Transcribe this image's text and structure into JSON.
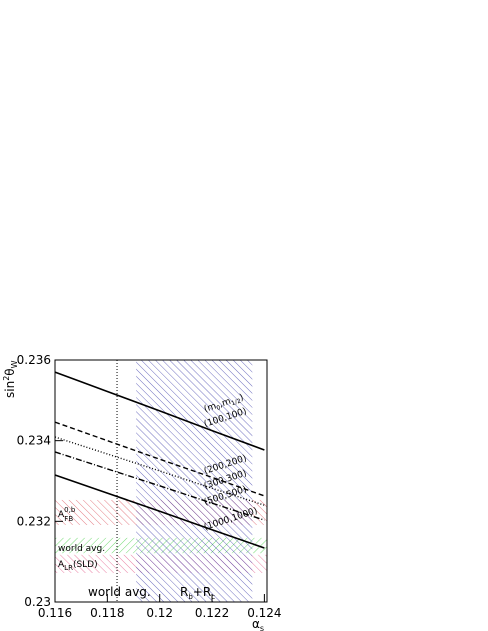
{
  "chart_data": {
    "type": "line",
    "x_label": {
      "base": "α",
      "sub": "s"
    },
    "y_label": {
      "base": "sin",
      "sup": "2",
      "mid": "θ",
      "sub": "W"
    },
    "xlim": [
      0.116,
      0.1241
    ],
    "ylim": [
      0.23,
      0.236
    ],
    "xticks": [
      0.116,
      0.118,
      0.12,
      0.122,
      0.124
    ],
    "yticks": [
      0.23,
      0.232,
      0.234,
      0.236
    ],
    "x": [
      0.116,
      0.118,
      0.12,
      0.122,
      0.124
    ],
    "series_header": {
      "a": "(m",
      "b": "0",
      "c": ",m",
      "d": "1/2",
      "e": ")"
    },
    "series": [
      {
        "name": "(100,100)",
        "color": "#000000",
        "style": "solid",
        "values": [
          0.2357,
          0.23522,
          0.23474,
          0.23425,
          0.23377
        ]
      },
      {
        "name": "(200,200)",
        "color": "#000000",
        "style": "dashed",
        "values": [
          0.23446,
          0.234,
          0.23354,
          0.23309,
          0.23263
        ]
      },
      {
        "name": "(300,300)",
        "color": "#000000",
        "style": "dotted",
        "values": [
          0.23409,
          0.23367,
          0.23325,
          0.23282,
          0.2324
        ]
      },
      {
        "name": "(500,500)",
        "color": "#000000",
        "style": "dashdot",
        "values": [
          0.23372,
          0.2333,
          0.23288,
          0.23245,
          0.23203
        ]
      },
      {
        "name": "(1000,1000)",
        "color": "#000000",
        "style": "solid",
        "values": [
          0.23315,
          0.2327,
          0.23225,
          0.23179,
          0.23134
        ]
      }
    ],
    "bands": [
      {
        "base": "A",
        "sup": "0,b",
        "sub": "FB",
        "tail": "",
        "color": "#d9434f",
        "range": [
          0.23191,
          0.23253
        ]
      },
      {
        "base": "world avg.",
        "sup": "",
        "sub": "",
        "tail": "",
        "color": "#33cc33",
        "range": [
          0.23121,
          0.23159
        ]
      },
      {
        "base": "A",
        "sup": "",
        "sub": "LR",
        "tail": "(SLD)",
        "color": "#e0457a",
        "range": [
          0.23072,
          0.23117
        ]
      }
    ],
    "vband": {
      "base": "R",
      "sub1": "b",
      "plus": "+R",
      "sub2": "c",
      "color": "#3a3aa8",
      "range": [
        0.1191,
        0.12354
      ]
    },
    "vline": {
      "label": "world avg.",
      "x": 0.11837
    }
  }
}
